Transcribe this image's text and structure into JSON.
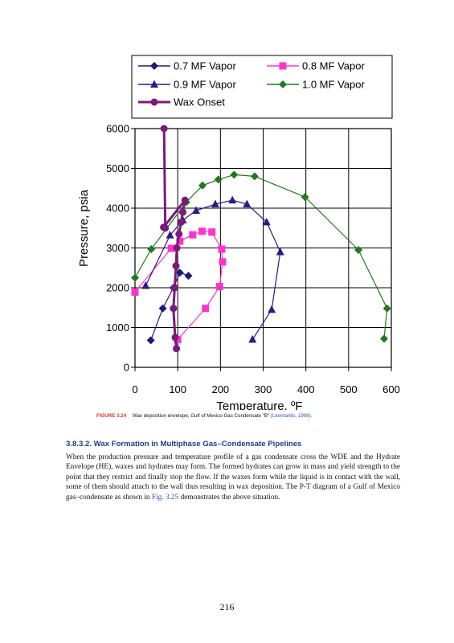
{
  "figure": {
    "label": "FIGURE 3.24",
    "caption": "Wax deposition envelope, Gulf of Mexico Gas Condensate \"B\"",
    "citation": "(Leontaritis, 1998)."
  },
  "section": {
    "title": "3.8.3.2. Wax Formation in Multiphase Gas–Condensate Pipelines",
    "body_before_ref": "When the production pressure and temperature profile of a gas condensate cross the WDE and the Hydrate Envelope (HE), waxes and hydrates may form. The formed hydrates can grow in mass and yield strength to the point that they restrict and finally stop the flow. If the waxes form while the liquid is in contact with the wall, some of them should attach to the wall thus resulting in wax deposition. The P-T diagram of a Gulf of Mexico gas–condensate as shown in",
    "ref": "Fig. 3.25",
    "body_after_ref": "demonstrates the above situation."
  },
  "page_number": "216",
  "chart_data": {
    "type": "line",
    "title": "",
    "xlabel": "Temperature, ºF",
    "ylabel": "Pressure, psia",
    "xlim": [
      0,
      600
    ],
    "ylim": [
      0,
      6000
    ],
    "xticks": [
      "0",
      "100",
      "200",
      "300",
      "400",
      "500",
      "600"
    ],
    "yticks": [
      "0",
      "1000",
      "2000",
      "3000",
      "4000",
      "5000",
      "6000"
    ],
    "grid": true,
    "legend_position": "top",
    "series": [
      {
        "name": "0.7 MF Vapor",
        "color": "#1a1a7a",
        "marker": "diamond",
        "points": [
          [
            37,
            680
          ],
          [
            65,
            1480
          ],
          [
            90,
            2000
          ],
          [
            105,
            2380
          ],
          [
            125,
            2300
          ]
        ]
      },
      {
        "name": "0.8 MF Vapor",
        "color": "#ff33cc",
        "marker": "square",
        "points": [
          [
            100,
            700
          ],
          [
            165,
            1480
          ],
          [
            198,
            2030
          ],
          [
            205,
            2650
          ],
          [
            203,
            2970
          ],
          [
            180,
            3400
          ],
          [
            157,
            3420
          ],
          [
            135,
            3330
          ],
          [
            105,
            3170
          ],
          [
            85,
            2990
          ],
          [
            0,
            1890
          ]
        ]
      },
      {
        "name": "0.9 MF Vapor",
        "color": "#2b1a8a",
        "marker": "triangle",
        "points": [
          [
            275,
            700
          ],
          [
            320,
            1450
          ],
          [
            340,
            2900
          ],
          [
            308,
            3650
          ],
          [
            262,
            4100
          ],
          [
            228,
            4200
          ],
          [
            188,
            4100
          ],
          [
            143,
            3940
          ],
          [
            112,
            3700
          ],
          [
            82,
            3320
          ],
          [
            25,
            2050
          ]
        ]
      },
      {
        "name": "1.0 MF Vapor",
        "color": "#1e7a1e",
        "marker": "diamond",
        "points": [
          [
            583,
            720
          ],
          [
            590,
            1480
          ],
          [
            523,
            2950
          ],
          [
            398,
            4280
          ],
          [
            280,
            4800
          ],
          [
            232,
            4840
          ],
          [
            195,
            4720
          ],
          [
            158,
            4570
          ],
          [
            120,
            4150
          ],
          [
            38,
            2970
          ],
          [
            0,
            2250
          ]
        ]
      },
      {
        "name": "Wax Onset",
        "color": "#7a1a7a",
        "marker": "circle",
        "points": [
          [
            97,
            470
          ],
          [
            94,
            750
          ],
          [
            90,
            1480
          ],
          [
            93,
            2000
          ],
          [
            96,
            2550
          ],
          [
            98,
            3000
          ],
          [
            103,
            3350
          ],
          [
            108,
            3650
          ],
          [
            112,
            3900
          ],
          [
            117,
            4200
          ],
          [
            67,
            3520
          ],
          [
            71,
            3500
          ],
          [
            68,
            6000
          ]
        ]
      }
    ]
  }
}
